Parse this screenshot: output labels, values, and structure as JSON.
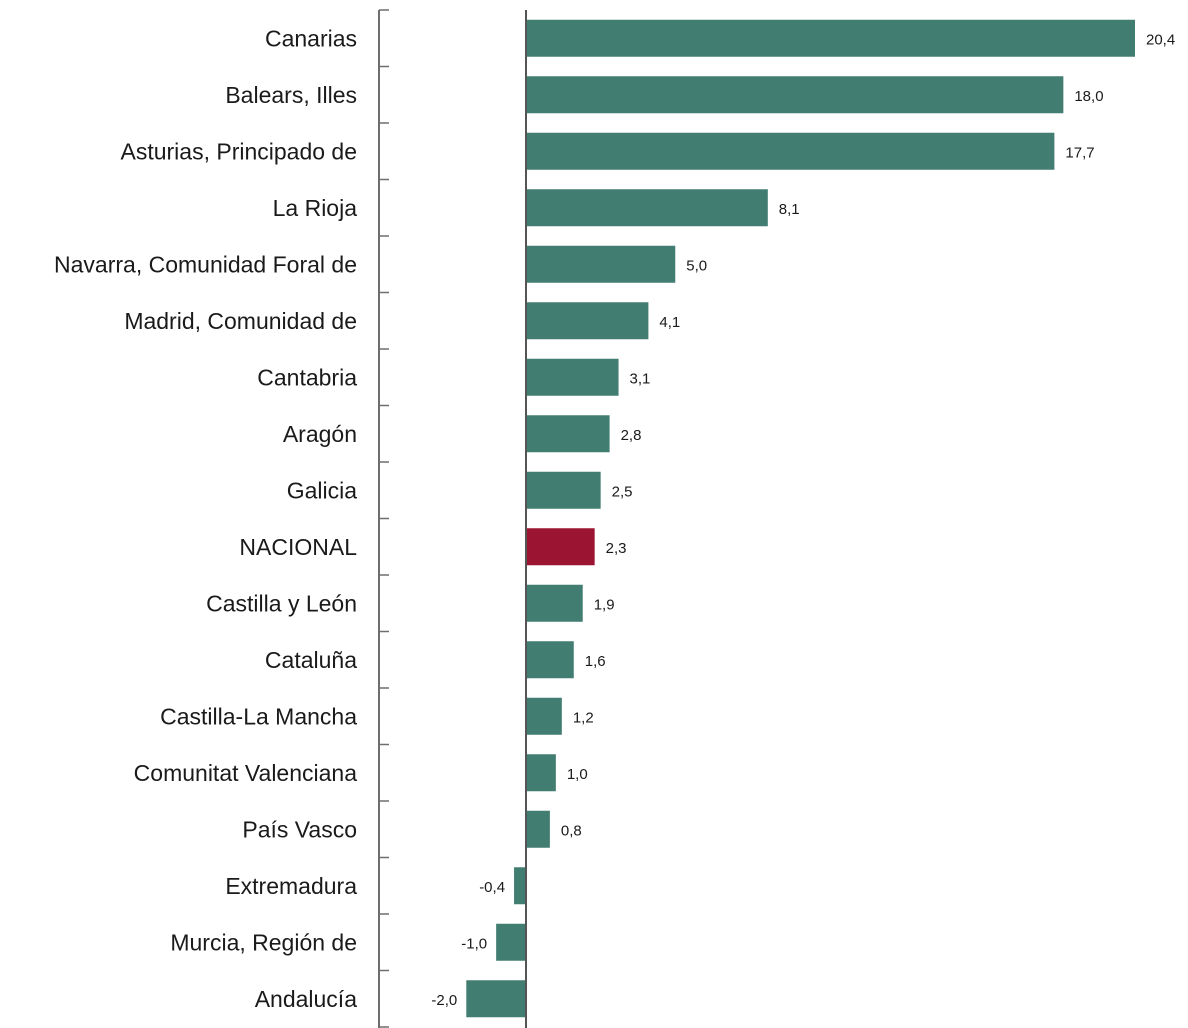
{
  "chart_data": {
    "type": "bar",
    "orientation": "horizontal",
    "categories": [
      "Canarias",
      "Balears, Illes",
      "Asturias, Principado de",
      "La Rioja",
      "Navarra, Comunidad Foral de",
      "Madrid, Comunidad de",
      "Cantabria",
      "Aragón",
      "Galicia",
      "NACIONAL",
      "Castilla y León",
      "Cataluña",
      "Castilla-La Mancha",
      "Comunitat Valenciana",
      "País Vasco",
      "Extremadura",
      "Murcia, Región de",
      "Andalucía"
    ],
    "values": [
      20.4,
      18.0,
      17.7,
      8.1,
      5.0,
      4.1,
      3.1,
      2.8,
      2.5,
      2.3,
      1.9,
      1.6,
      1.2,
      1.0,
      0.8,
      -0.4,
      -1.0,
      -2.0
    ],
    "value_labels": [
      "20,4",
      "18,0",
      "17,7",
      "8,1",
      "5,0",
      "4,1",
      "3,1",
      "2,8",
      "2,5",
      "2,3",
      "1,9",
      "1,6",
      "1,2",
      "1,0",
      "0,8",
      "-0,4",
      "-1,0",
      "-2,0"
    ],
    "highlight_category": "NACIONAL",
    "xlim": [
      -4.9,
      20.4
    ],
    "grid": false,
    "legend": "none",
    "title": "",
    "xlabel": "",
    "ylabel": ""
  },
  "colors": {
    "bar": "#427d71",
    "highlight_bar": "#9b1532",
    "axis": "#6e6e6e",
    "zero_line": "#555555",
    "text": "#1a1a1a"
  }
}
